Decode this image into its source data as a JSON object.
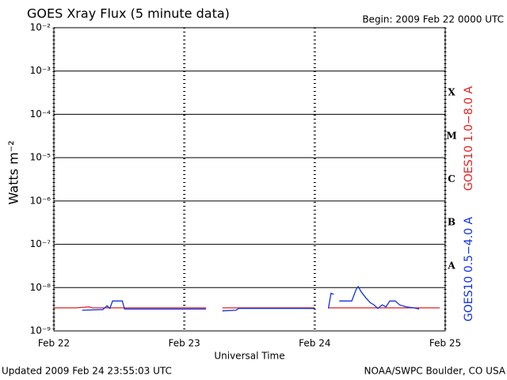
{
  "chart_data": {
    "type": "line",
    "title": "GOES Xray Flux (5 minute data)",
    "subtitle": "Begin:  2009 Feb 22 0000 UTC",
    "x_label": "Universal Time",
    "y_label": "Watts m⁻²",
    "footer_left": "Updated 2009 Feb 24 23:55:03 UTC",
    "footer_right": "NOAA/SWPC Boulder, CO USA",
    "class_labels": [
      "X",
      "M",
      "C",
      "B",
      "A"
    ],
    "log_y": true,
    "grid": true,
    "xlim": [
      0,
      72
    ],
    "xticks": [
      {
        "value": 0,
        "label": "Feb 22"
      },
      {
        "value": 24,
        "label": "Feb 23"
      },
      {
        "value": 48,
        "label": "Feb 24"
      },
      {
        "value": 72,
        "label": "Feb 25"
      }
    ],
    "ylim": [
      1e-09,
      0.01
    ],
    "yticks": [
      {
        "value": 1e-09,
        "label": "10⁻⁹"
      },
      {
        "value": 1e-08,
        "label": "10⁻⁸"
      },
      {
        "value": 1e-07,
        "label": "10⁻⁷"
      },
      {
        "value": 1e-06,
        "label": "10⁻⁶"
      },
      {
        "value": 1e-05,
        "label": "10⁻⁵"
      },
      {
        "value": 0.0001,
        "label": "10⁻⁴"
      },
      {
        "value": 0.001,
        "label": "10⁻³"
      },
      {
        "value": 0.01,
        "label": "10⁻²"
      }
    ],
    "series": [
      {
        "name": "GOES10 1.0−8.0 A",
        "color": "#e02020",
        "x": [
          0,
          4,
          6.5,
          7.0,
          8,
          16,
          24,
          28,
          29.5,
          31,
          40,
          48,
          49,
          50.5,
          56,
          64,
          71
        ],
        "values": [
          3.4e-09,
          3.4e-09,
          3.6e-09,
          3.4e-09,
          3.4e-09,
          3.4e-09,
          3.4e-09,
          3.4e-09,
          null,
          3.4e-09,
          3.4e-09,
          3.4e-09,
          null,
          3.4e-09,
          3.4e-09,
          3.4e-09,
          3.4e-09
        ]
      },
      {
        "name": "GOES10 0.5−4.0 A",
        "color": "#1030e0",
        "x": [
          5.2,
          9.0,
          9.8,
          10.3,
          10.8,
          12.6,
          13.0,
          20,
          28,
          29.5,
          31,
          33.5,
          34,
          40,
          48,
          49,
          50.5,
          51.0,
          51.5,
          52,
          52.5,
          54.8,
          55.6,
          56.0,
          56.6,
          57.4,
          58.2,
          58.9,
          59.6,
          60.4,
          61.1,
          61.8,
          62.8,
          63.6,
          64.8,
          66.3,
          67.2
        ],
        "values": [
          3e-09,
          3.1e-09,
          3.8e-09,
          3.3e-09,
          4.9e-09,
          4.9e-09,
          3.2e-09,
          3.2e-09,
          3.2e-09,
          null,
          2.9e-09,
          3e-09,
          3.3e-09,
          3.3e-09,
          3.3e-09,
          null,
          3.3e-09,
          7.4e-09,
          7e-09,
          null,
          4.9e-09,
          4.9e-09,
          9e-09,
          1.05e-08,
          7.8e-09,
          5.8e-09,
          4.5e-09,
          4e-09,
          3.3e-09,
          4e-09,
          3.6e-09,
          4.9e-09,
          4.9e-09,
          4e-09,
          3.6e-09,
          3.4e-09,
          3.2e-09
        ]
      }
    ]
  }
}
